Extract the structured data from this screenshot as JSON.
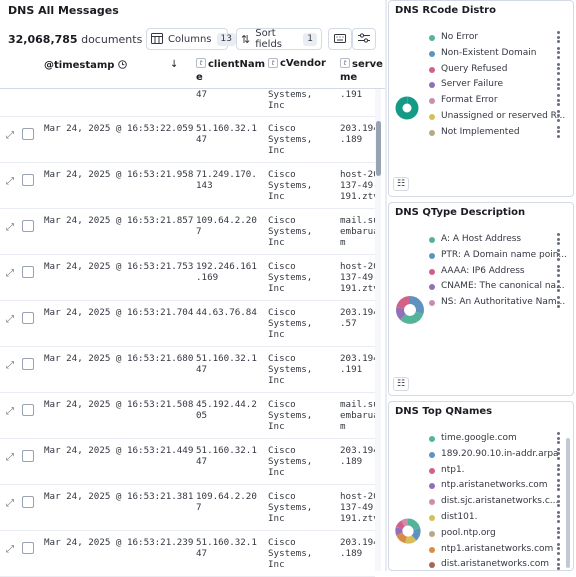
{
  "left_panel": {
    "title": "DNS All Messages",
    "doc_count": "32,068,785",
    "doc_label": "documents",
    "toolbar": {
      "columns_label": "Columns",
      "columns_count": "13",
      "sort_label": "Sort fields",
      "sort_count": "1"
    },
    "headers": {
      "timestamp": "@timestamp",
      "clientName_l1": "clientNam",
      "clientName_l2": "e",
      "cVendor": "cVendor",
      "serve_l1": "serve",
      "serve_l2": "me"
    },
    "first_row": {
      "client": "47",
      "vendor_l1": "Systems,",
      "vendor_l2": "Inc",
      "server": ".191"
    },
    "rows": [
      {
        "ts": "Mar 24, 2025 @ 16:53:22.059",
        "c1": "51.160.32.1",
        "c2": "47",
        "v1": "Cisco",
        "v2": "Systems,",
        "v3": "Inc",
        "s1": "203.194",
        "s2": ".189",
        "s3": ""
      },
      {
        "ts": "Mar 24, 2025 @ 16:53:21.958",
        "c1": "71.249.170.",
        "c2": "143",
        "v1": "Cisco",
        "v2": "Systems,",
        "v3": "Inc",
        "s1": "host-20",
        "s2": "137-49-",
        "s3": "191.ztv"
      },
      {
        "ts": "Mar 24, 2025 @ 16:53:21.857",
        "c1": "109.64.2.20",
        "c2": "7",
        "v1": "Cisco",
        "v2": "Systems,",
        "v3": "Inc",
        "s1": "mail.su",
        "s2": "embarua",
        "s3": "m"
      },
      {
        "ts": "Mar 24, 2025 @ 16:53:21.753",
        "c1": "192.246.161",
        "c2": ".169",
        "v1": "Cisco",
        "v2": "Systems,",
        "v3": "Inc",
        "s1": "host-20",
        "s2": "137-49-",
        "s3": "191.ztv"
      },
      {
        "ts": "Mar 24, 2025 @ 16:53:21.704",
        "c1": "44.63.76.84",
        "c2": "",
        "v1": "Cisco",
        "v2": "Systems,",
        "v3": "Inc",
        "s1": "203.194",
        "s2": ".57",
        "s3": ""
      },
      {
        "ts": "Mar 24, 2025 @ 16:53:21.680",
        "c1": "51.160.32.1",
        "c2": "47",
        "v1": "Cisco",
        "v2": "Systems,",
        "v3": "Inc",
        "s1": "203.194",
        "s2": ".191",
        "s3": ""
      },
      {
        "ts": "Mar 24, 2025 @ 16:53:21.508",
        "c1": "45.192.44.2",
        "c2": "05",
        "v1": "Cisco",
        "v2": "Systems,",
        "v3": "Inc",
        "s1": "mail.su",
        "s2": "embarua",
        "s3": "m"
      },
      {
        "ts": "Mar 24, 2025 @ 16:53:21.449",
        "c1": "51.160.32.1",
        "c2": "47",
        "v1": "Cisco",
        "v2": "Systems,",
        "v3": "Inc",
        "s1": "203.194",
        "s2": ".189",
        "s3": ""
      },
      {
        "ts": "Mar 24, 2025 @ 16:53:21.381",
        "c1": "109.64.2.20",
        "c2": "7",
        "v1": "Cisco",
        "v2": "Systems,",
        "v3": "Inc",
        "s1": "host-20",
        "s2": "137-49-",
        "s3": "191.ztv"
      },
      {
        "ts": "Mar 24, 2025 @ 16:53:21.239",
        "c1": "51.160.32.1",
        "c2": "47",
        "v1": "Cisco",
        "v2": "Systems,",
        "v3": "Inc",
        "s1": "203.194",
        "s2": ".189",
        "s3": ""
      }
    ]
  },
  "rcode_panel": {
    "title": "DNS RCode Distro",
    "items": [
      {
        "label": "No Error",
        "color": "#54b399"
      },
      {
        "label": "Non-Existent Domain",
        "color": "#6092c0"
      },
      {
        "label": "Query Refused",
        "color": "#d36086"
      },
      {
        "label": "Server Failure",
        "color": "#9170b8"
      },
      {
        "label": "Format Error",
        "color": "#ca8eae"
      },
      {
        "label": "Unassigned or reserved R...",
        "color": "#d6bf57"
      },
      {
        "label": "Not Implemented",
        "color": "#b9a888"
      }
    ]
  },
  "qtype_panel": {
    "title": "DNS QType Description",
    "items": [
      {
        "label": "A: A Host Address",
        "color": "#54b399"
      },
      {
        "label": "PTR: A Domain name poin...",
        "color": "#6092c0"
      },
      {
        "label": "AAAA: IP6 Address",
        "color": "#d36086"
      },
      {
        "label": "CNAME: The canonical na...",
        "color": "#9170b8"
      },
      {
        "label": "NS: An Authoritative Nam...",
        "color": "#ca8eae"
      }
    ]
  },
  "qnames_panel": {
    "title": "DNS Top QNames",
    "items": [
      {
        "label": "time.google.com",
        "color": "#54b399"
      },
      {
        "label": "189.20.90.10.in-addr.arpa",
        "color": "#6092c0"
      },
      {
        "label": "ntp1.",
        "color": "#d36086"
      },
      {
        "label": "ntp.aristanetworks.com",
        "color": "#9170b8"
      },
      {
        "label": "dist.sjc.aristanetworks.c...",
        "color": "#ca8eae"
      },
      {
        "label": "dist101.",
        "color": "#d6bf57"
      },
      {
        "label": "pool.ntp.org",
        "color": "#b9a888"
      },
      {
        "label": "ntp1.aristanetworks.com",
        "color": "#da8b45"
      },
      {
        "label": "dist.aristanetworks.com",
        "color": "#aa6556"
      }
    ]
  }
}
